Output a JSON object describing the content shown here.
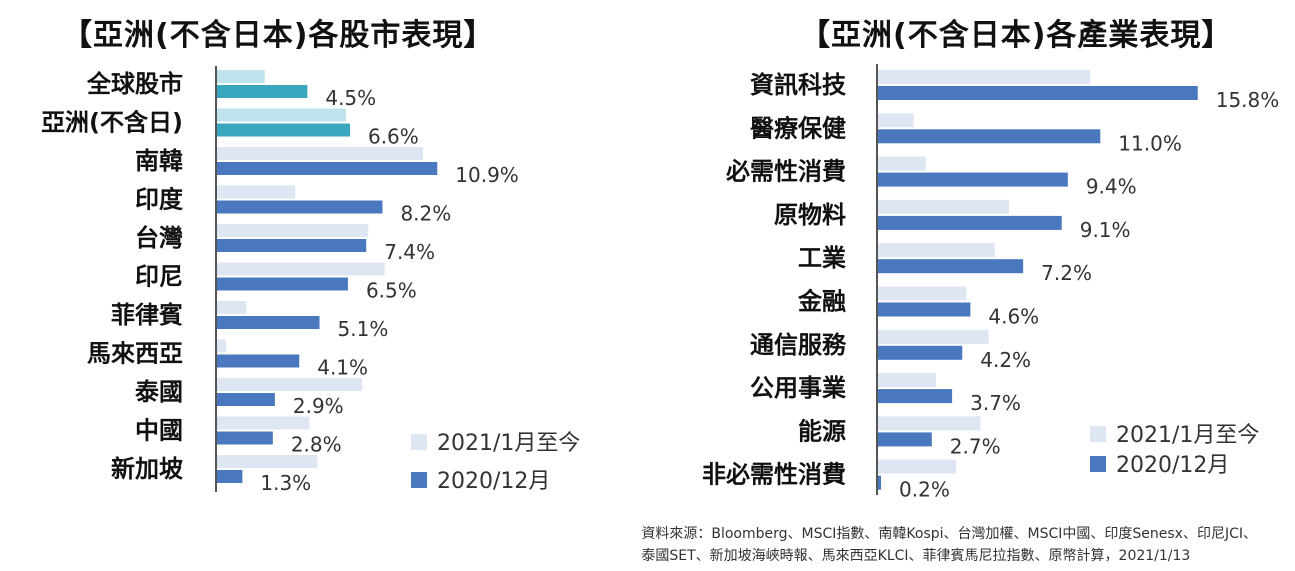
{
  "colors": {
    "light": "#dde6f2",
    "dark": "#4a78bf",
    "teal_light": "#bfe3ec",
    "teal_dark": "#3ba7bf",
    "axis": "#555555"
  },
  "legend": {
    "series1": "2021/1月至今",
    "series2": "2020/12月"
  },
  "chart_data": [
    {
      "type": "bar",
      "orientation": "horizontal",
      "title": "【亞洲(不含日本)各股市表現】",
      "categories": [
        "全球股市",
        "亞洲(不含日)",
        "南韓",
        "印度",
        "台灣",
        "印尼",
        "菲律賓",
        "馬來西亞",
        "泰國",
        "中國",
        "新加坡"
      ],
      "series": [
        {
          "name": "2021/1月至今",
          "values": [
            2.4,
            6.4,
            10.2,
            3.9,
            7.5,
            8.3,
            1.5,
            0.5,
            7.2,
            4.6,
            5.0
          ]
        },
        {
          "name": "2020/12月",
          "values": [
            4.5,
            6.6,
            10.9,
            8.2,
            7.4,
            6.5,
            5.1,
            4.1,
            2.9,
            2.8,
            1.3
          ]
        }
      ],
      "value_labels": [
        "4.5%",
        "6.6%",
        "10.9%",
        "8.2%",
        "7.4%",
        "6.5%",
        "5.1%",
        "4.1%",
        "2.9%",
        "2.8%",
        "1.3%"
      ],
      "highlight_categories": [
        "全球股市",
        "亞洲(不含日)"
      ],
      "legend_position": "bottom-right",
      "grid": false
    },
    {
      "type": "bar",
      "orientation": "horizontal",
      "title": "【亞洲(不含日本)各產業表現】",
      "categories": [
        "資訊科技",
        "醫療保健",
        "必需性消費",
        "原物料",
        "工業",
        "金融",
        "通信服務",
        "公用事業",
        "能源",
        "非必需性消費"
      ],
      "series": [
        {
          "name": "2021/1月至今",
          "values": [
            10.5,
            1.8,
            2.4,
            6.5,
            5.8,
            4.4,
            5.5,
            2.9,
            5.1,
            3.9
          ]
        },
        {
          "name": "2020/12月",
          "values": [
            15.8,
            11.0,
            9.4,
            9.1,
            7.2,
            4.6,
            4.2,
            3.7,
            2.7,
            0.2
          ]
        }
      ],
      "value_labels": [
        "15.8%",
        "11.0%",
        "9.4%",
        "9.1%",
        "7.2%",
        "4.6%",
        "4.2%",
        "3.7%",
        "2.7%",
        "0.2%"
      ],
      "legend_position": "bottom-right",
      "grid": false
    }
  ],
  "source_lines": [
    "資料來源：Bloomberg、MSCI指數、南韓Kospi、台灣加權、MSCI中國、印度Senesx、印尼JCI、",
    "泰國SET、新加坡海峽時報、馬來西亞KLCI、菲律賓馬尼拉指數、原幣計算，2021/1/13"
  ]
}
